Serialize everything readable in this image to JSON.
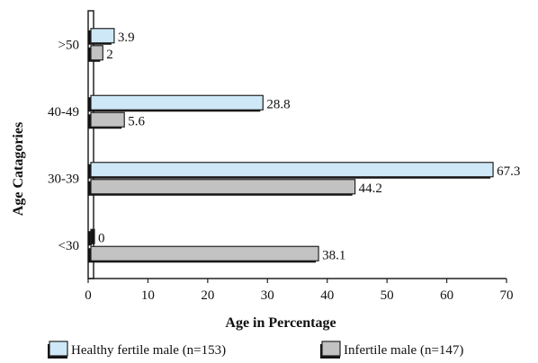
{
  "chart_data": {
    "type": "bar",
    "orientation": "horizontal",
    "categories": [
      ">50",
      "40-49",
      "30-39",
      "<30"
    ],
    "series": [
      {
        "name": "Healthy fertile male (n=153)",
        "values": [
          3.9,
          28.8,
          67.3,
          0
        ],
        "labels": [
          "3.9",
          "28.8",
          "67.3",
          "0"
        ],
        "color": "#cfe8f8"
      },
      {
        "name": "Infertile male (n=147)",
        "values": [
          2,
          5.6,
          44.2,
          38.1
        ],
        "labels": [
          "2",
          "5.6",
          "44.2",
          "38.1"
        ],
        "color": "#c2c2c2"
      }
    ],
    "x_ticks": [
      "0",
      "10",
      "20",
      "30",
      "40",
      "50",
      "60",
      "70"
    ],
    "xlim": [
      0,
      70
    ],
    "xlabel": "Age in Percentage",
    "ylabel": "Age Catagories",
    "grid": false,
    "legend_position": "bottom"
  }
}
